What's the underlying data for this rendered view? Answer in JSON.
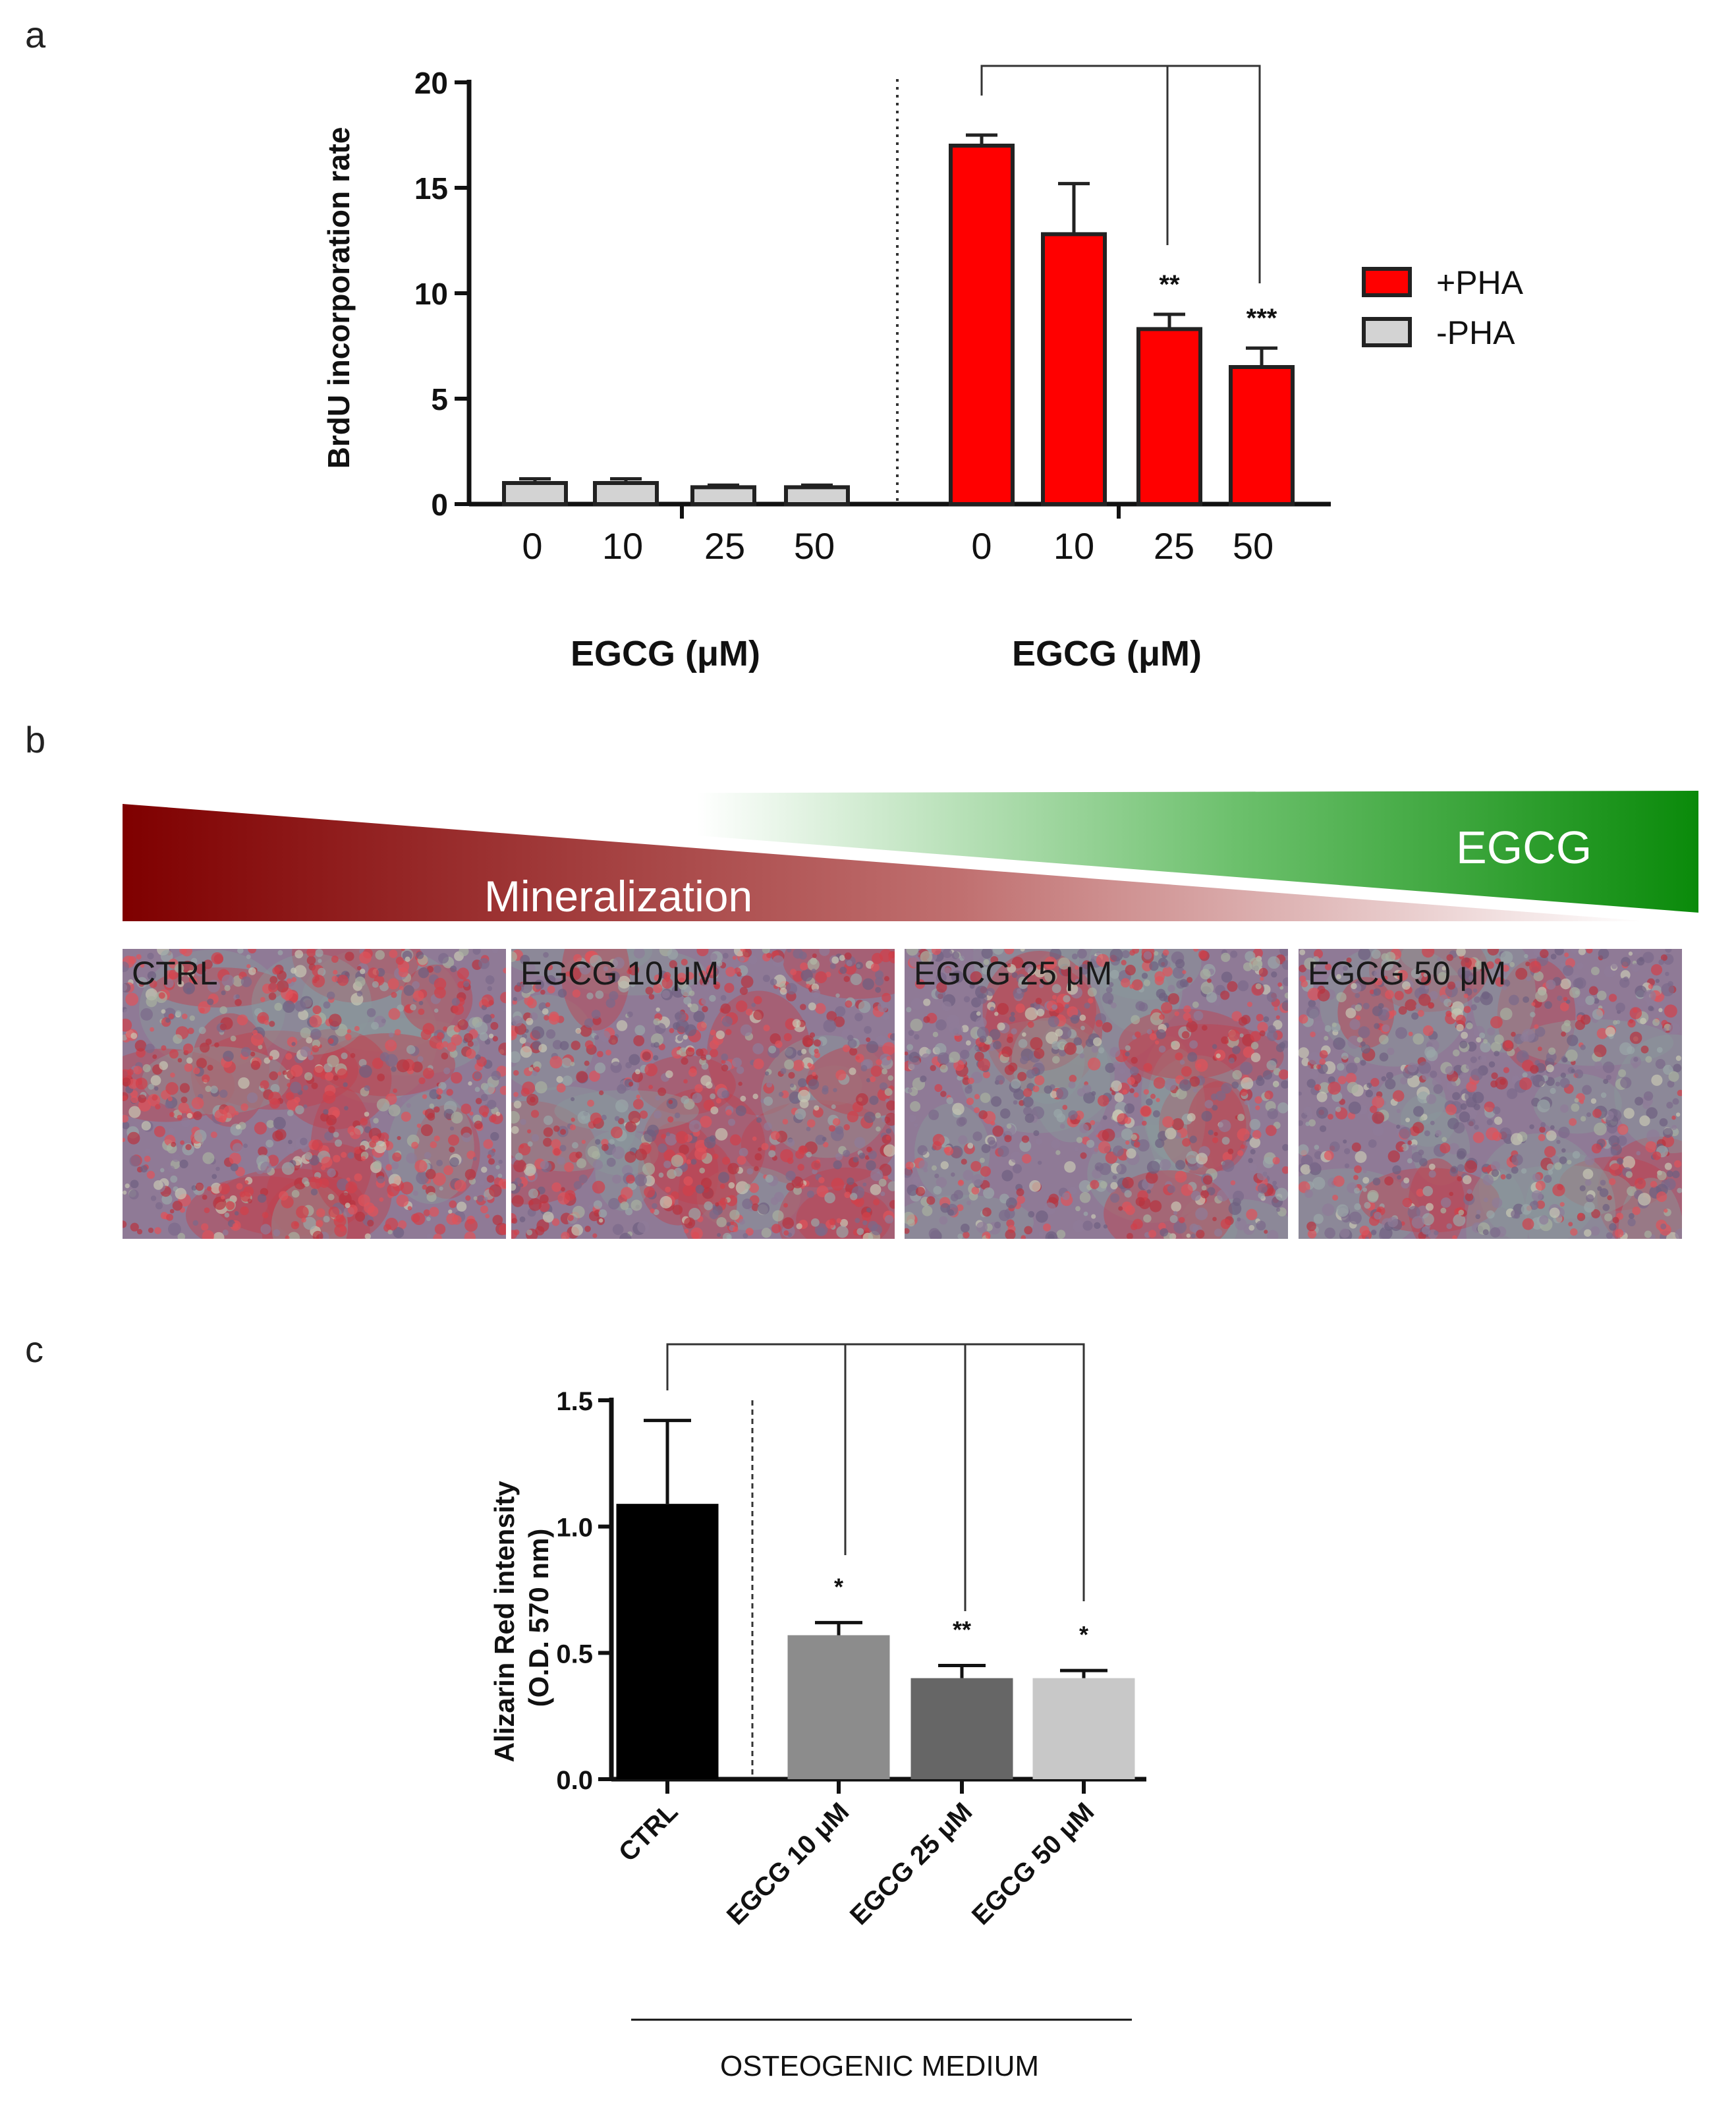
{
  "panels": {
    "a": "a",
    "b": "b",
    "c": "c"
  },
  "chart_data": [
    {
      "panel": "a",
      "type": "bar",
      "ylabel": "BrdU incorporation rate",
      "ylim": [
        0,
        20
      ],
      "yticks": [
        0,
        5,
        10,
        15,
        20
      ],
      "groups": [
        {
          "xlabel": "EGCG (μM)",
          "categories": [
            "0",
            "10",
            "25",
            "50"
          ],
          "series_name": "-PHA",
          "values": [
            1.0,
            1.0,
            0.8,
            0.8
          ],
          "errors": [
            0.2,
            0.2,
            0.1,
            0.1
          ],
          "color": "#d3d3d3"
        },
        {
          "xlabel": "EGCG (μM)",
          "categories": [
            "0",
            "10",
            "25",
            "50"
          ],
          "series_name": "+PHA",
          "values": [
            17.0,
            12.8,
            8.3,
            6.5
          ],
          "errors": [
            0.5,
            2.4,
            0.7,
            0.9
          ],
          "significance": [
            "",
            "",
            "**",
            "***"
          ],
          "color": "#ff0000"
        }
      ],
      "legend": [
        {
          "label": "+PHA",
          "color": "#ff0000"
        },
        {
          "label": "-PHA",
          "color": "#d3d3d3"
        }
      ],
      "legend_position": "right",
      "grid": false
    },
    {
      "panel": "c",
      "type": "bar",
      "ylabel": "Alizarin Red intensity\n(O.D. 570 nm)",
      "ylim": [
        0,
        1.5
      ],
      "yticks": [
        "0.0",
        "0.5",
        "1.0",
        "1.5"
      ],
      "categories": [
        "CTRL",
        "EGCG 10 μM",
        "EGCG 25 μM",
        "EGCG 50 μM"
      ],
      "values": [
        1.09,
        0.57,
        0.4,
        0.4
      ],
      "errors": [
        0.33,
        0.05,
        0.05,
        0.03
      ],
      "significance": [
        "",
        "*",
        "**",
        "*"
      ],
      "colors": [
        "#000000",
        "#8c8c8c",
        "#666666",
        "#c8c8c8"
      ],
      "xlabel": "OSTEOGENIC MEDIUM",
      "grid": false
    }
  ],
  "gradient": {
    "left_label": "Mineralization",
    "right_label": "EGCG",
    "left_color": "#7f0000",
    "right_color": "#0a8a0a"
  },
  "micrographs": [
    {
      "label": "CTRL"
    },
    {
      "label": "EGCG 10 μM"
    },
    {
      "label": "EGCG 25 μM"
    },
    {
      "label": "EGCG 50 μM"
    }
  ]
}
